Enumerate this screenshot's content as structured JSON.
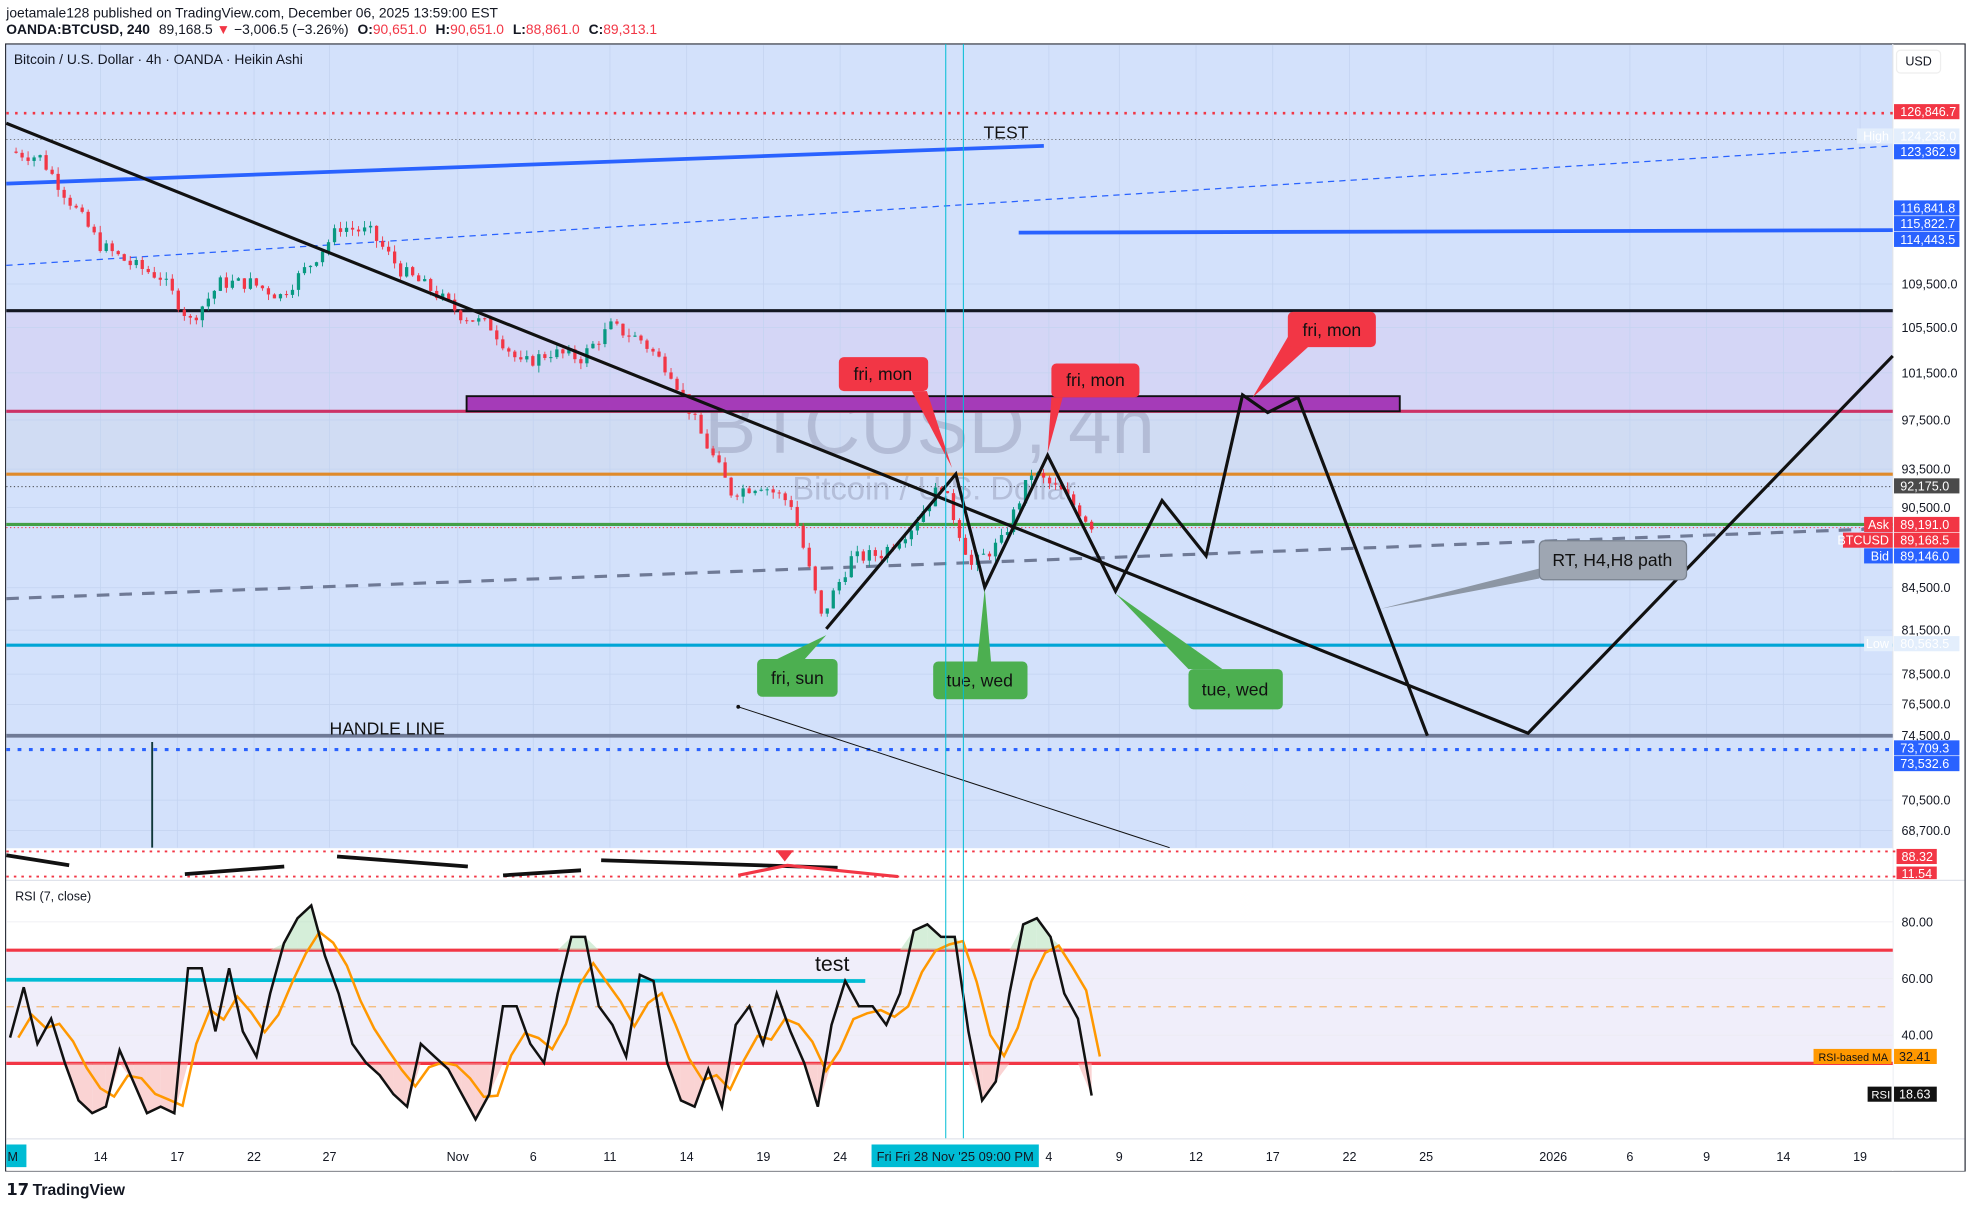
{
  "header": {
    "publisher": "joetamale128 published on TradingView.com, December 06, 2025 13:59:00 EST",
    "symbol": "OANDA:BTCUSD, 240",
    "last": "89,168.5",
    "change": "−3,006.5 (−3.26%)",
    "o_label": "O:",
    "o": "90,651.0",
    "h_label": "H:",
    "h": "90,651.0",
    "l_label": "L:",
    "l": "88,861.0",
    "c_label": "C:",
    "c": "89,313.1"
  },
  "chart_title": "Bitcoin / U.S. Dollar · 4h · OANDA · Heikin Ashi",
  "watermark": {
    "main": "BTCUSD, 4h",
    "sub": "Bitcoin / U.S. Dollar"
  },
  "currency": "USD",
  "colors": {
    "up": "#089981",
    "down": "#f23645",
    "pane_bg": "#d3e1fb",
    "accent_blue": "#2962ff",
    "cyan": "#00bcd4",
    "purple_zone": "#9c27b0"
  },
  "chart_data": {
    "type": "candlestick",
    "style": "Heikin Ashi",
    "scale": "log",
    "closes": [
      122600,
      122000,
      117500,
      113200,
      111400,
      110200,
      106100,
      109600,
      109600,
      108400,
      111400,
      115000,
      114400,
      110800,
      109000,
      106700,
      105600,
      102200,
      103300,
      102800,
      105600,
      104400,
      101600,
      96300,
      91700,
      92300,
      90800,
      82400,
      86600,
      87000,
      89000,
      92300,
      86100,
      87900,
      93200,
      91700,
      89168.5
    ],
    "price_ticks": [
      "109,500.0",
      "105,500.0",
      "101,500.0",
      "97,500.0",
      "93,500.0",
      "90,500.0",
      "84,500.0",
      "81,500.0",
      "78,500.0",
      "76,500.0",
      "74,500.0",
      "70,500.0",
      "68,700.0"
    ],
    "price_badges": [
      {
        "label": "",
        "value": "126,846.7",
        "color": "#f23645"
      },
      {
        "label": "High",
        "value": "124,238.0",
        "color": "#e3eefc"
      },
      {
        "label": "",
        "value": "123,362.9",
        "color": "#2962ff"
      },
      {
        "label": "",
        "value": "116,841.8",
        "color": "#2962ff"
      },
      {
        "label": "",
        "value": "115,822.7",
        "color": "#2962ff"
      },
      {
        "label": "",
        "value": "114,443.5",
        "color": "#2962ff"
      },
      {
        "label": "",
        "value": "92,175.0",
        "color": "#4a4a4a"
      },
      {
        "label": "Ask",
        "value": "89,191.0",
        "color": "#f23645"
      },
      {
        "label": "BTCUSD",
        "value": "89,168.5",
        "color": "#f23645"
      },
      {
        "label": "Bid",
        "value": "89,146.0",
        "color": "#2962ff"
      },
      {
        "label": "Low",
        "value": "80,563.5",
        "color": "#e3eefc"
      },
      {
        "label": "",
        "value": "73,709.3",
        "color": "#2962ff"
      },
      {
        "label": "",
        "value": "73,532.6",
        "color": "#2962ff"
      }
    ],
    "time_ticks": [
      "14",
      "17",
      "22",
      "27",
      "Nov",
      "6",
      "11",
      "14",
      "19",
      "24",
      "4",
      "9",
      "12",
      "17",
      "22",
      "25",
      "2026",
      "6",
      "9",
      "14",
      "19"
    ],
    "crosshair_time": "Fri  Fri 28 Nov '25   09:00 PM",
    "left_edge_tick": "M",
    "annotations": {
      "test_top": "TEST",
      "handle": "HANDLE LINE",
      "callouts": [
        "fri, mon",
        "fri, mon",
        "fri, mon",
        "fri, sun",
        "tue, wed",
        "tue, wed",
        "RT, H4,H8 path"
      ]
    },
    "strip_badges": [
      "88.32",
      "11.54"
    ],
    "rsi": {
      "title": "RSI (7, close)",
      "ticks": [
        "80.00",
        "60.00",
        "40.00"
      ],
      "upper_band": 70,
      "lower_band": 30,
      "mid": 50,
      "values": [
        39.1,
        56.9,
        36.9,
        45.8,
        30.2,
        16.9,
        12.4,
        14.7,
        34.7,
        23.6,
        12.4,
        14.7,
        12.4,
        63.6,
        63.6,
        41.3,
        63.6,
        41.3,
        32.4,
        54.7,
        72.4,
        81.3,
        85.8,
        68,
        54.7,
        36.9,
        30.2,
        25.8,
        19.1,
        14.7,
        36.9,
        32.4,
        28,
        19.1,
        10.2,
        19.1,
        50.2,
        50.2,
        36.9,
        30.2,
        54.7,
        74.7,
        74.7,
        50.2,
        43.6,
        32.4,
        61.3,
        59.1,
        30.2,
        16.9,
        14.7,
        28,
        14.7,
        43.6,
        50.2,
        36.9,
        54.7,
        41.3,
        30.2,
        14.7,
        43.6,
        59.1,
        50.2,
        50.2,
        43.6,
        54.7,
        76.9,
        79.1,
        74.7,
        74.7,
        41.3,
        16.9,
        23.6,
        54.7,
        79.1,
        81.3,
        74.7,
        54.7,
        45.8,
        18.63
      ],
      "ma_label": "RSI-based MA",
      "ma_value": "32.41",
      "rsi_label": "RSI",
      "rsi_value": "18.63",
      "note": "test"
    }
  },
  "footer": {
    "logo": "TradingView"
  }
}
